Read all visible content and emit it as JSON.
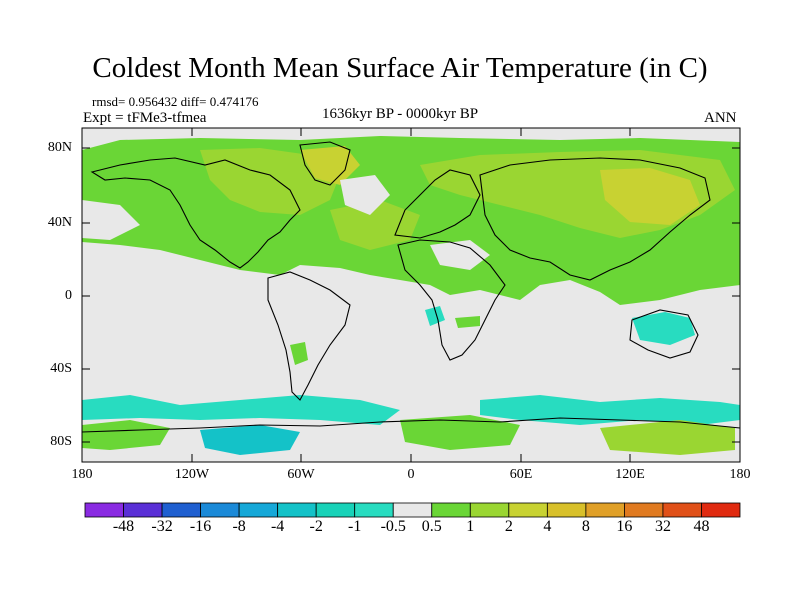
{
  "header": {
    "title": "Coldest Month Mean Surface Air Temperature (in C)",
    "stats": "rmsd= 0.956432 diff= 0.474176",
    "experiment": "Expt = tFMe3-tfmea",
    "period": "1636kyr BP - 0000kyr BP",
    "season": "ANN"
  },
  "axes": {
    "lat_ticks": [
      "80N",
      "40N",
      "0",
      "40S",
      "80S"
    ],
    "lon_ticks": [
      "180",
      "120W",
      "60W",
      "0",
      "60E",
      "120E",
      "180"
    ]
  },
  "colorbar": {
    "labels": [
      "-48",
      "-32",
      "-16",
      "-8",
      "-4",
      "-2",
      "-1",
      "-0.5",
      "0.5",
      "1",
      "2",
      "4",
      "8",
      "16",
      "32",
      "48"
    ],
    "colors": [
      "#8a2be2",
      "#5a2fd6",
      "#1f5fd0",
      "#1b8ad8",
      "#16a8d8",
      "#14c2c8",
      "#18d2b8",
      "#28dcc0",
      "#e8e8e8",
      "#6ad636",
      "#9ad632",
      "#c8d232",
      "#d8c02a",
      "#e0a028",
      "#e07a20",
      "#e05018",
      "#e02a10"
    ]
  }
}
